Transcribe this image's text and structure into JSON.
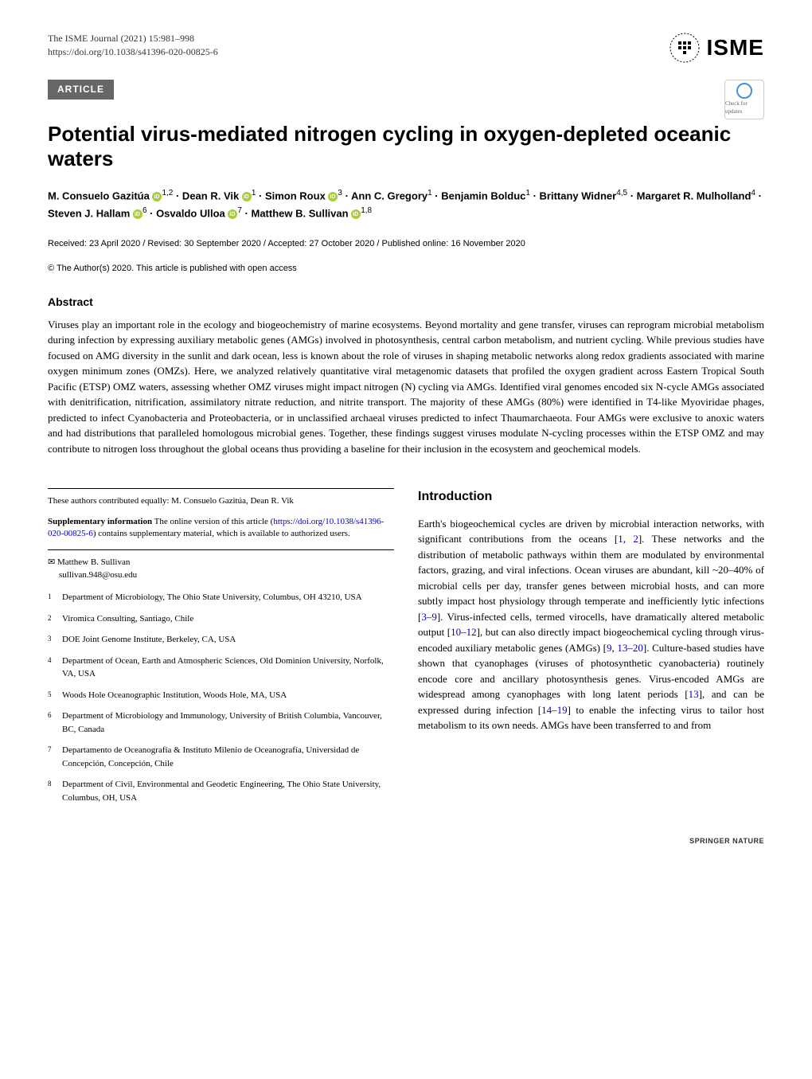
{
  "header": {
    "journal_name": "The ISME Journal (2021) 15:981–998",
    "doi_url": "https://doi.org/10.1038/s41396-020-00825-6",
    "logo_text": "ISME"
  },
  "badge": {
    "label": "ARTICLE",
    "check_text": "Check for updates"
  },
  "title": "Potential virus-mediated nitrogen cycling in oxygen-depleted oceanic waters",
  "authors_html": "M. Consuelo Gazitúa <span class='orcid-icon'></span><sup>1,2</sup> · Dean R. Vik <span class='orcid-icon'></span><sup>1</sup> · Simon Roux <span class='orcid-icon'></span><sup>3</sup> · Ann C. Gregory<sup>1</sup> · Benjamin Bolduc<sup>1</sup> · Brittany Widner<sup>4,5</sup> · Margaret R. Mulholland<sup>4</sup> · Steven J. Hallam <span class='orcid-icon'></span><sup>6</sup> · Osvaldo Ulloa <span class='orcid-icon'></span><sup>7</sup> · Matthew B. Sullivan <span class='orcid-icon'></span><sup>1,8</sup>",
  "dates": "Received: 23 April 2020 / Revised: 30 September 2020 / Accepted: 27 October 2020 / Published online: 16 November 2020",
  "copyright": "© The Author(s) 2020. This article is published with open access",
  "abstract": {
    "heading": "Abstract",
    "text": "Viruses play an important role in the ecology and biogeochemistry of marine ecosystems. Beyond mortality and gene transfer, viruses can reprogram microbial metabolism during infection by expressing auxiliary metabolic genes (AMGs) involved in photosynthesis, central carbon metabolism, and nutrient cycling. While previous studies have focused on AMG diversity in the sunlit and dark ocean, less is known about the role of viruses in shaping metabolic networks along redox gradients associated with marine oxygen minimum zones (OMZs). Here, we analyzed relatively quantitative viral metagenomic datasets that profiled the oxygen gradient across Eastern Tropical South Pacific (ETSP) OMZ waters, assessing whether OMZ viruses might impact nitrogen (N) cycling via AMGs. Identified viral genomes encoded six N-cycle AMGs associated with denitrification, nitrification, assimilatory nitrate reduction, and nitrite transport. The majority of these AMGs (80%) were identified in T4-like Myoviridae phages, predicted to infect Cyanobacteria and Proteobacteria, or in unclassified archaeal viruses predicted to infect Thaumarchaeota. Four AMGs were exclusive to anoxic waters and had distributions that paralleled homologous microbial genes. Together, these findings suggest viruses modulate N-cycling processes within the ETSP OMZ and may contribute to nitrogen loss throughout the global oceans thus providing a baseline for their inclusion in the ecosystem and geochemical models."
  },
  "contributed": "These authors contributed equally: M. Consuelo Gazitúa, Dean R. Vik",
  "supplementary": {
    "label": "Supplementary information",
    "text": " The online version of this article (",
    "link": "https://doi.org/10.1038/s41396-020-00825-6",
    "text2": ") contains supplementary material, which is available to authorized users."
  },
  "corresponding": {
    "name": "Matthew B. Sullivan",
    "email": "sullivan.948@osu.edu"
  },
  "affiliations": [
    {
      "num": "1",
      "text": "Department of Microbiology, The Ohio State University, Columbus, OH 43210, USA"
    },
    {
      "num": "2",
      "text": "Viromica Consulting, Santiago, Chile"
    },
    {
      "num": "3",
      "text": "DOE Joint Genome Institute, Berkeley, CA, USA"
    },
    {
      "num": "4",
      "text": "Department of Ocean, Earth and Atmospheric Sciences, Old Dominion University, Norfolk, VA, USA"
    },
    {
      "num": "5",
      "text": "Woods Hole Oceanographic Institution, Woods Hole, MA, USA"
    },
    {
      "num": "6",
      "text": "Department of Microbiology and Immunology, University of British Columbia, Vancouver, BC, Canada"
    },
    {
      "num": "7",
      "text": "Departamento de Oceanografía & Instituto Milenio de Oceanografía, Universidad de Concepción, Concepción, Chile"
    },
    {
      "num": "8",
      "text": "Department of Civil, Environmental and Geodetic Engineering, The Ohio State University, Columbus, OH, USA"
    }
  ],
  "introduction": {
    "heading": "Introduction",
    "text_html": "Earth's biogeochemical cycles are driven by microbial interaction networks, with significant contributions from the oceans [<a href='#'>1</a>, <a href='#'>2</a>]. These networks and the distribution of metabolic pathways within them are modulated by environmental factors, grazing, and viral infections. Ocean viruses are abundant, kill ~20–40% of microbial cells per day, transfer genes between microbial hosts, and can more subtly impact host physiology through temperate and inefficiently lytic infections [<a href='#'>3</a>–<a href='#'>9</a>]. Virus-infected cells, termed virocells, have dramatically altered metabolic output [<a href='#'>10</a>–<a href='#'>12</a>], but can also directly impact biogeochemical cycling through virus-encoded auxiliary metabolic genes (AMGs) [<a href='#'>9</a>, <a href='#'>13</a>–<a href='#'>20</a>]. Culture-based studies have shown that cyanophages (viruses of photosynthetic cyanobacteria) routinely encode core and ancillary photosynthesis genes. Virus-encoded AMGs are widespread among cyanophages with long latent periods [<a href='#'>13</a>], and can be expressed during infection [<a href='#'>14</a>–<a href='#'>19</a>] to enable the infecting virus to tailor host metabolism to its own needs. AMGs have been transferred to and from"
  },
  "footer": "SPRINGER NATURE"
}
